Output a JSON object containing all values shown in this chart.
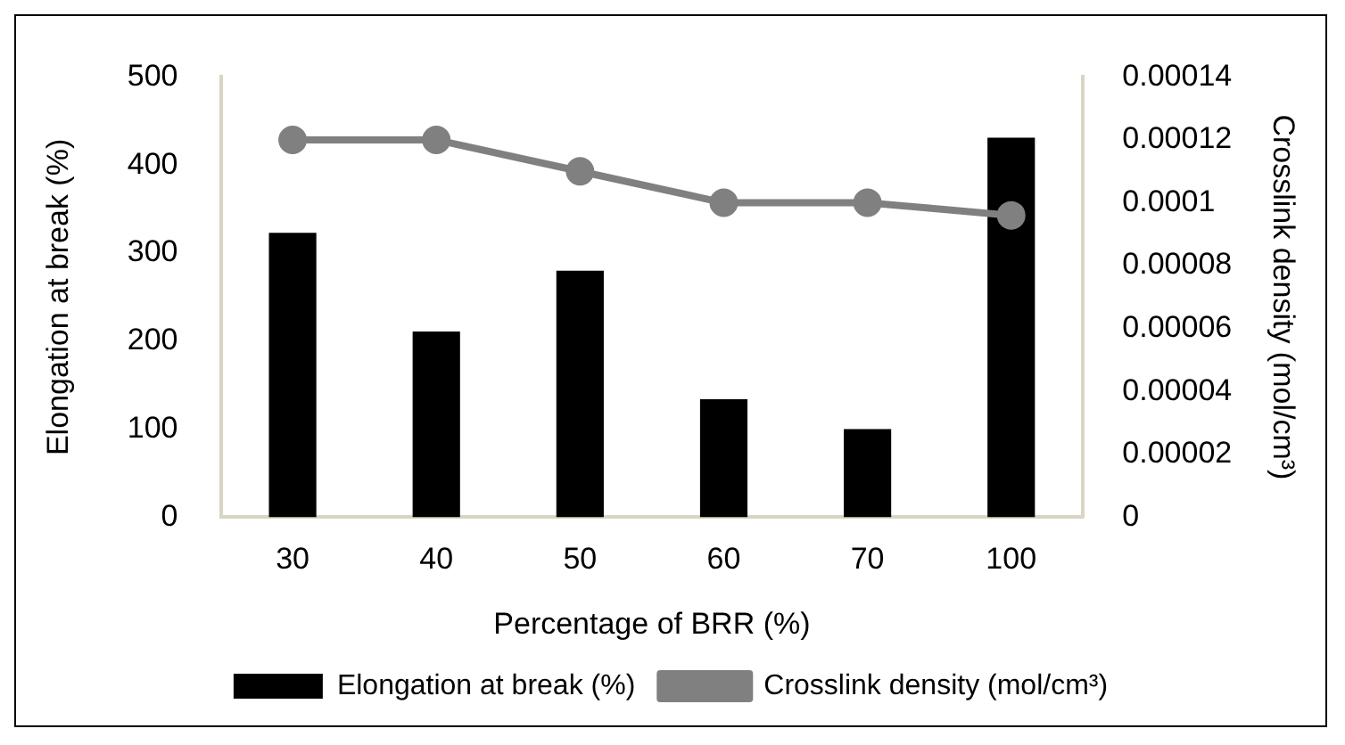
{
  "chart_data": {
    "type": "bar",
    "xlabel": "Percentage of BRR (%)",
    "ylabel": "Elongation at break (%)",
    "y2label": "Crosslink density (mol/cm³)",
    "categories": [
      "30",
      "40",
      "50",
      "60",
      "70",
      "100"
    ],
    "series": [
      {
        "name": "Elongation at break (%)",
        "color": "#000000",
        "values": [
          323,
          211,
          280,
          134,
          100,
          431
        ]
      },
      {
        "name": "Crosslink density (mol/cm³)",
        "type": "line",
        "axis": "y2",
        "color": "#808080",
        "values": [
          0.00012,
          0.00012,
          0.00011,
          0.0001,
          0.0001,
          9.6e-05
        ]
      }
    ],
    "ylim": [
      0,
      500
    ],
    "yticks": [
      0,
      100,
      200,
      300,
      400,
      500
    ],
    "y2lim": [
      0,
      0.00014
    ],
    "y2ticks": [
      0,
      {
        "value": 2e-05,
        "label": "0.00002"
      },
      {
        "value": 4e-05,
        "label": "0.00004"
      },
      {
        "value": 6e-05,
        "label": "0.00006"
      },
      {
        "value": 8e-05,
        "label": "0.00008"
      },
      0.0001,
      0.00012,
      0.00014
    ],
    "grid": false,
    "legend": "bottom",
    "marker": "circle"
  }
}
